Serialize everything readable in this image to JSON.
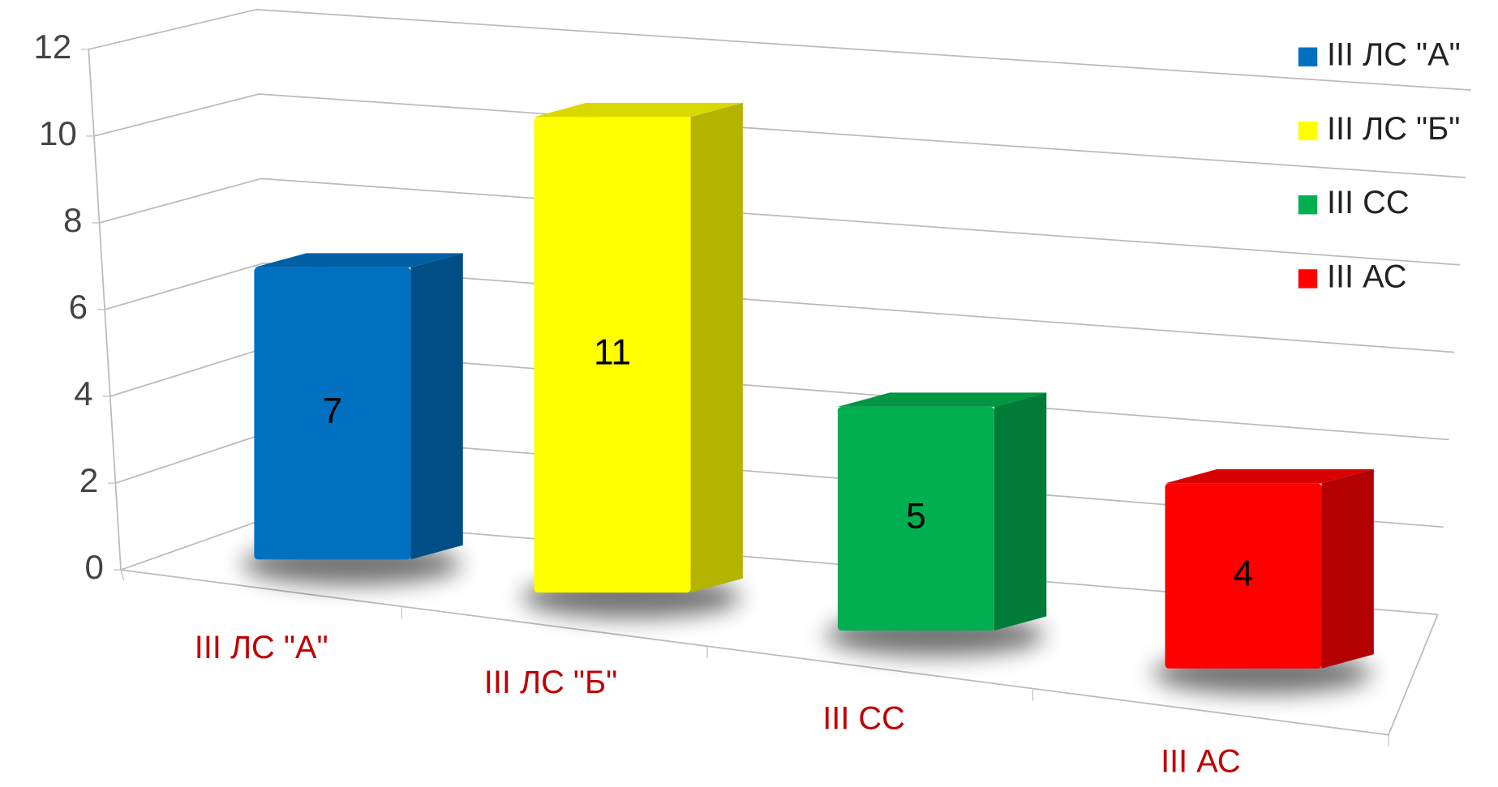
{
  "chart_data": {
    "type": "bar3d",
    "categories": [
      "III ЛС \"А\"",
      "III ЛС \"Б\"",
      "III СС",
      "III АС"
    ],
    "values": [
      7,
      11,
      5,
      4
    ],
    "colors": [
      "#0070c0",
      "#ffff00",
      "#00b050",
      "#ff0000"
    ],
    "ylim": [
      0,
      12
    ],
    "yticks": [
      0,
      2,
      4,
      6,
      8,
      10,
      12
    ],
    "grid": true,
    "legend": "right"
  }
}
